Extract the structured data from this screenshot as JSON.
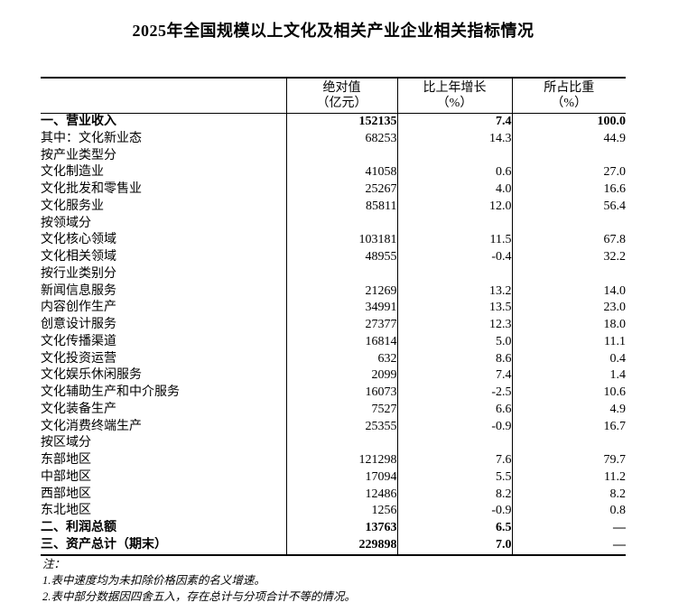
{
  "title": "2025年全国规模以上文化及相关产业企业相关指标情况",
  "table": {
    "header": {
      "stub": "",
      "absolute": [
        "绝对值",
        "（亿元）"
      ],
      "growth": [
        "比上年增长",
        "（%）"
      ],
      "share": [
        "所占比重",
        "（%）"
      ]
    },
    "rows": [
      {
        "label": "一、营业收入",
        "indent": 0,
        "bold": true,
        "absolute": "152135",
        "growth": "7.4",
        "share": "100.0"
      },
      {
        "label": "其中：文化新业态",
        "indent": 2,
        "bold": false,
        "absolute": "68253",
        "growth": "14.3",
        "share": "44.9"
      },
      {
        "label": "按产业类型分",
        "indent": 0,
        "bold": false,
        "absolute": "",
        "growth": "",
        "share": ""
      },
      {
        "label": "文化制造业",
        "indent": 1,
        "bold": false,
        "absolute": "41058",
        "growth": "0.6",
        "share": "27.0"
      },
      {
        "label": "文化批发和零售业",
        "indent": 1,
        "bold": false,
        "absolute": "25267",
        "growth": "4.0",
        "share": "16.6"
      },
      {
        "label": "文化服务业",
        "indent": 1,
        "bold": false,
        "absolute": "85811",
        "growth": "12.0",
        "share": "56.4"
      },
      {
        "label": "按领域分",
        "indent": 0,
        "bold": false,
        "absolute": "",
        "growth": "",
        "share": ""
      },
      {
        "label": "文化核心领域",
        "indent": 1,
        "bold": false,
        "absolute": "103181",
        "growth": "11.5",
        "share": "67.8"
      },
      {
        "label": "文化相关领域",
        "indent": 1,
        "bold": false,
        "absolute": "48955",
        "growth": "-0.4",
        "share": "32.2"
      },
      {
        "label": "按行业类别分",
        "indent": 0,
        "bold": false,
        "absolute": "",
        "growth": "",
        "share": ""
      },
      {
        "label": "新闻信息服务",
        "indent": 1,
        "bold": false,
        "absolute": "21269",
        "growth": "13.2",
        "share": "14.0"
      },
      {
        "label": "内容创作生产",
        "indent": 1,
        "bold": false,
        "absolute": "34991",
        "growth": "13.5",
        "share": "23.0"
      },
      {
        "label": "创意设计服务",
        "indent": 1,
        "bold": false,
        "absolute": "27377",
        "growth": "12.3",
        "share": "18.0"
      },
      {
        "label": "文化传播渠道",
        "indent": 1,
        "bold": false,
        "absolute": "16814",
        "growth": "5.0",
        "share": "11.1"
      },
      {
        "label": "文化投资运营",
        "indent": 1,
        "bold": false,
        "absolute": "632",
        "growth": "8.6",
        "share": "0.4"
      },
      {
        "label": "文化娱乐休闲服务",
        "indent": 1,
        "bold": false,
        "absolute": "2099",
        "growth": "7.4",
        "share": "1.4"
      },
      {
        "label": "文化辅助生产和中介服务",
        "indent": 1,
        "bold": false,
        "absolute": "16073",
        "growth": "-2.5",
        "share": "10.6"
      },
      {
        "label": "文化装备生产",
        "indent": 1,
        "bold": false,
        "absolute": "7527",
        "growth": "6.6",
        "share": "4.9"
      },
      {
        "label": "文化消费终端生产",
        "indent": 1,
        "bold": false,
        "absolute": "25355",
        "growth": "-0.9",
        "share": "16.7"
      },
      {
        "label": "按区域分",
        "indent": 0,
        "bold": false,
        "absolute": "",
        "growth": "",
        "share": ""
      },
      {
        "label": "东部地区",
        "indent": 1,
        "bold": false,
        "absolute": "121298",
        "growth": "7.6",
        "share": "79.7"
      },
      {
        "label": "中部地区",
        "indent": 1,
        "bold": false,
        "absolute": "17094",
        "growth": "5.5",
        "share": "11.2"
      },
      {
        "label": "西部地区",
        "indent": 1,
        "bold": false,
        "absolute": "12486",
        "growth": "8.2",
        "share": "8.2"
      },
      {
        "label": "东北地区",
        "indent": 1,
        "bold": false,
        "absolute": "1256",
        "growth": "-0.9",
        "share": "0.8"
      },
      {
        "label": "二、利润总额",
        "indent": 0,
        "bold": true,
        "absolute": "13763",
        "growth": "6.5",
        "share": "—"
      },
      {
        "label": "三、资产总计（期末）",
        "indent": 0,
        "bold": true,
        "absolute": "229898",
        "growth": "7.0",
        "share": "—"
      }
    ]
  },
  "notes": {
    "heading": "注：",
    "items": [
      "1.表中速度均为未扣除价格因素的名义增速。",
      "2.表中部分数据因四舍五入，存在总计与分项合计不等的情况。"
    ]
  }
}
